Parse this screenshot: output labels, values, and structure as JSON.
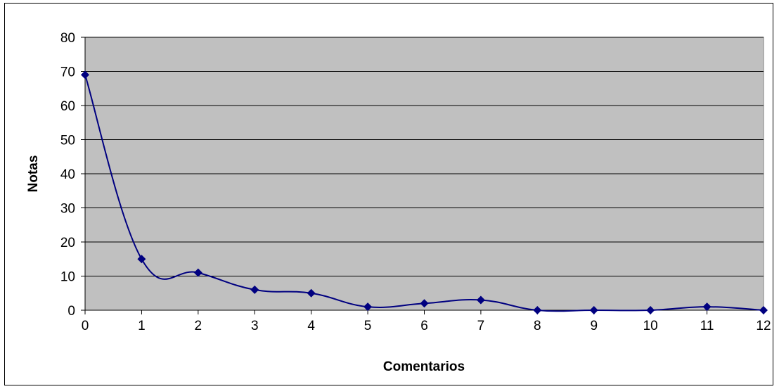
{
  "chart_data": {
    "type": "line",
    "title": "",
    "xlabel": "Comentarios",
    "ylabel": "Notas",
    "x": [
      0,
      1,
      2,
      3,
      4,
      5,
      6,
      7,
      8,
      9,
      10,
      11,
      12
    ],
    "series": [
      {
        "values": [
          69,
          15,
          11,
          6,
          5,
          1,
          2,
          3,
          0,
          0,
          0,
          1,
          0
        ]
      }
    ],
    "xlim": [
      0,
      12
    ],
    "ylim": [
      0,
      80
    ],
    "yticks": [
      0,
      10,
      20,
      30,
      40,
      50,
      60,
      70,
      80
    ],
    "xticks": [
      0,
      1,
      2,
      3,
      4,
      5,
      6,
      7,
      8,
      9,
      10,
      11,
      12
    ],
    "grid": "horizontal",
    "legend": "none",
    "smoothed": true,
    "marker": "diamond",
    "colors": {
      "plot_background": "#c0c0c0",
      "line": "#000080",
      "gridline": "#000000"
    }
  }
}
